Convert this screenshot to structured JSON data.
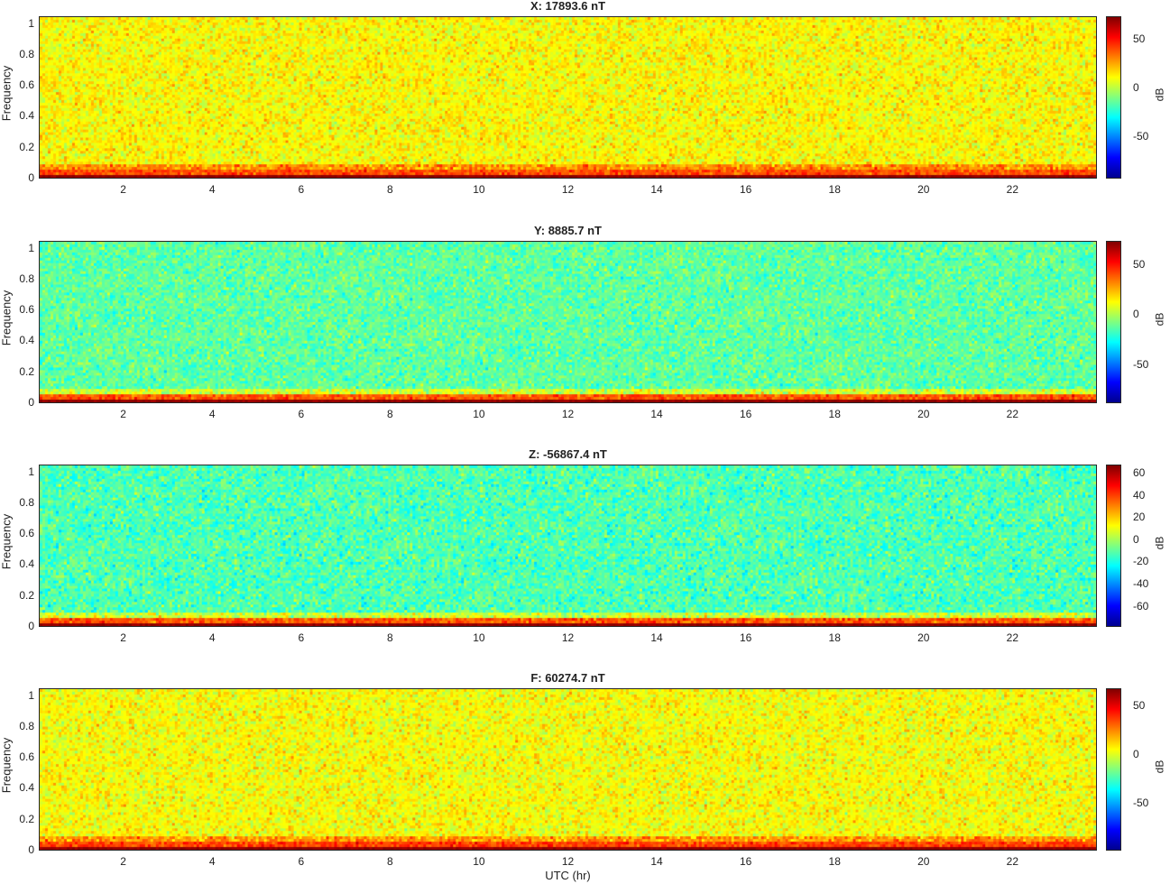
{
  "xlabel": "UTC (hr)",
  "chart_data": [
    {
      "type": "heatmap",
      "title": "X: 17893.6 nT",
      "ylabel": "Frequency",
      "colorbar_label": "dB",
      "colormap": "jet",
      "xlim": [
        0.1,
        23.9
      ],
      "ylim": [
        0,
        1.05
      ],
      "xticks": [
        "2",
        "4",
        "6",
        "8",
        "10",
        "12",
        "14",
        "16",
        "18",
        "20",
        "22"
      ],
      "yticks": [
        "1",
        "0.8",
        "0.6",
        "0.4",
        "0.2",
        "0"
      ],
      "clim": [
        -92,
        74
      ],
      "cticks": [
        "50",
        "0",
        "-50"
      ],
      "background_level_db": 12,
      "low_freq_level_db": 74
    },
    {
      "type": "heatmap",
      "title": "Y: 8885.7 nT",
      "ylabel": "Frequency",
      "colorbar_label": "dB",
      "colormap": "jet",
      "xlim": [
        0.1,
        23.9
      ],
      "ylim": [
        0,
        1.05
      ],
      "xticks": [
        "2",
        "4",
        "6",
        "8",
        "10",
        "12",
        "14",
        "16",
        "18",
        "20",
        "22"
      ],
      "yticks": [
        "1",
        "0.8",
        "0.6",
        "0.4",
        "0.2",
        "0"
      ],
      "clim": [
        -88,
        74
      ],
      "cticks": [
        "50",
        "0",
        "-50"
      ],
      "background_level_db": -12,
      "low_freq_level_db": 74
    },
    {
      "type": "heatmap",
      "title": "Z: -56867.4 nT",
      "ylabel": "Frequency",
      "colorbar_label": "dB",
      "colormap": "jet",
      "xlim": [
        0.1,
        23.9
      ],
      "ylim": [
        0,
        1.05
      ],
      "xticks": [
        "2",
        "4",
        "6",
        "8",
        "10",
        "12",
        "14",
        "16",
        "18",
        "20",
        "22"
      ],
      "yticks": [
        "1",
        "0.8",
        "0.6",
        "0.4",
        "0.2",
        "0"
      ],
      "clim": [
        -78,
        68
      ],
      "cticks": [
        "60",
        "40",
        "20",
        "0",
        "-20",
        "-40",
        "-60"
      ],
      "background_level_db": -12,
      "low_freq_level_db": 68
    },
    {
      "type": "heatmap",
      "title": "F: 60274.7 nT",
      "ylabel": "Frequency",
      "colorbar_label": "dB",
      "colormap": "jet",
      "xlim": [
        0.1,
        23.9
      ],
      "ylim": [
        0,
        1.05
      ],
      "xticks": [
        "2",
        "4",
        "6",
        "8",
        "10",
        "12",
        "14",
        "16",
        "18",
        "20",
        "22"
      ],
      "yticks": [
        "1",
        "0.8",
        "0.6",
        "0.4",
        "0.2",
        "0"
      ],
      "clim": [
        -98,
        68
      ],
      "cticks": [
        "50",
        "0",
        "-50"
      ],
      "background_level_db": 5,
      "low_freq_level_db": 68
    }
  ]
}
